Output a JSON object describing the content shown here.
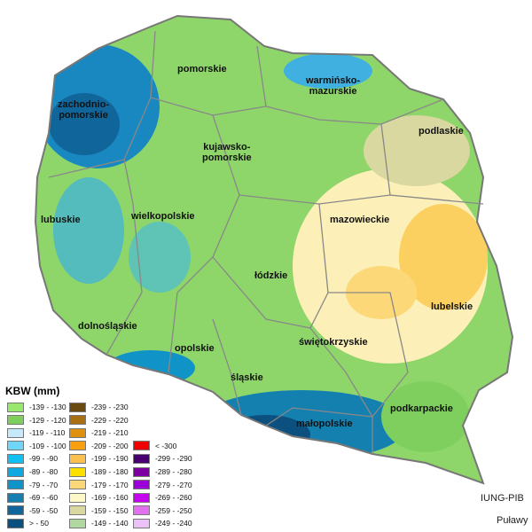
{
  "legend": {
    "title": "KBW (mm)",
    "columns": [
      [
        {
          "label": "-139 - -130",
          "color": "#99e86e"
        },
        {
          "label": "-129 - -120",
          "color": "#7fcf5f"
        },
        {
          "label": "-119 - -110",
          "color": "#c6e9fb"
        },
        {
          "label": "-109 - -100",
          "color": "#70d6f8"
        },
        {
          "label": "-99 - -90",
          "color": "#10c0f0"
        },
        {
          "label": "-89 - -80",
          "color": "#10a8e0"
        },
        {
          "label": "-79 - -70",
          "color": "#1094c8"
        },
        {
          "label": "-69 - -60",
          "color": "#1480b0"
        },
        {
          "label": "-59 - -50",
          "color": "#10669a"
        },
        {
          "label": "> - 50",
          "color": "#0c5080"
        }
      ],
      [
        {
          "label": "-239 - -230",
          "color": "#6a4a10"
        },
        {
          "label": "-229 - -220",
          "color": "#a86e14"
        },
        {
          "label": "-219 - -210",
          "color": "#e09010"
        },
        {
          "label": "-209 - -200",
          "color": "#f8a010"
        },
        {
          "label": "-199 - -190",
          "color": "#fcc050"
        },
        {
          "label": "-189 - -180",
          "color": "#fce000"
        },
        {
          "label": "-179 - -170",
          "color": "#fcd878"
        },
        {
          "label": "-169 - -160",
          "color": "#fcf8c8"
        },
        {
          "label": "-159 - -150",
          "color": "#d8d8a0"
        },
        {
          "label": "-149 - -140",
          "color": "#b0d8a0"
        }
      ],
      [
        {
          "label": "< -300",
          "color": "#f00000"
        },
        {
          "label": "-299 - -290",
          "color": "#480070"
        },
        {
          "label": "-289 - -280",
          "color": "#7c00a0"
        },
        {
          "label": "-279 - -270",
          "color": "#9c00d8"
        },
        {
          "label": "-269 - -260",
          "color": "#c800f0"
        },
        {
          "label": "-259 - -250",
          "color": "#e070f0"
        },
        {
          "label": "-249 - -240",
          "color": "#ecc0f8"
        }
      ]
    ]
  },
  "regions": [
    {
      "name": "pomorskie"
    },
    {
      "name": "warmińsko-\nmazurskie"
    },
    {
      "name": "zachodnio-\npomorskie"
    },
    {
      "name": "kujawsko-\npomorskie"
    },
    {
      "name": "podlaskie"
    },
    {
      "name": "lubuskie"
    },
    {
      "name": "wielkopolskie"
    },
    {
      "name": "mazowieckie"
    },
    {
      "name": "łódzkie"
    },
    {
      "name": "lubelskie"
    },
    {
      "name": "dolnośląskie"
    },
    {
      "name": "opolskie"
    },
    {
      "name": "świętokrzyskie"
    },
    {
      "name": "śląskie"
    },
    {
      "name": "małopolskie"
    },
    {
      "name": "podkarpackie"
    }
  ],
  "credits": {
    "institute": "IUNG-PIB",
    "city": "Puławy"
  }
}
